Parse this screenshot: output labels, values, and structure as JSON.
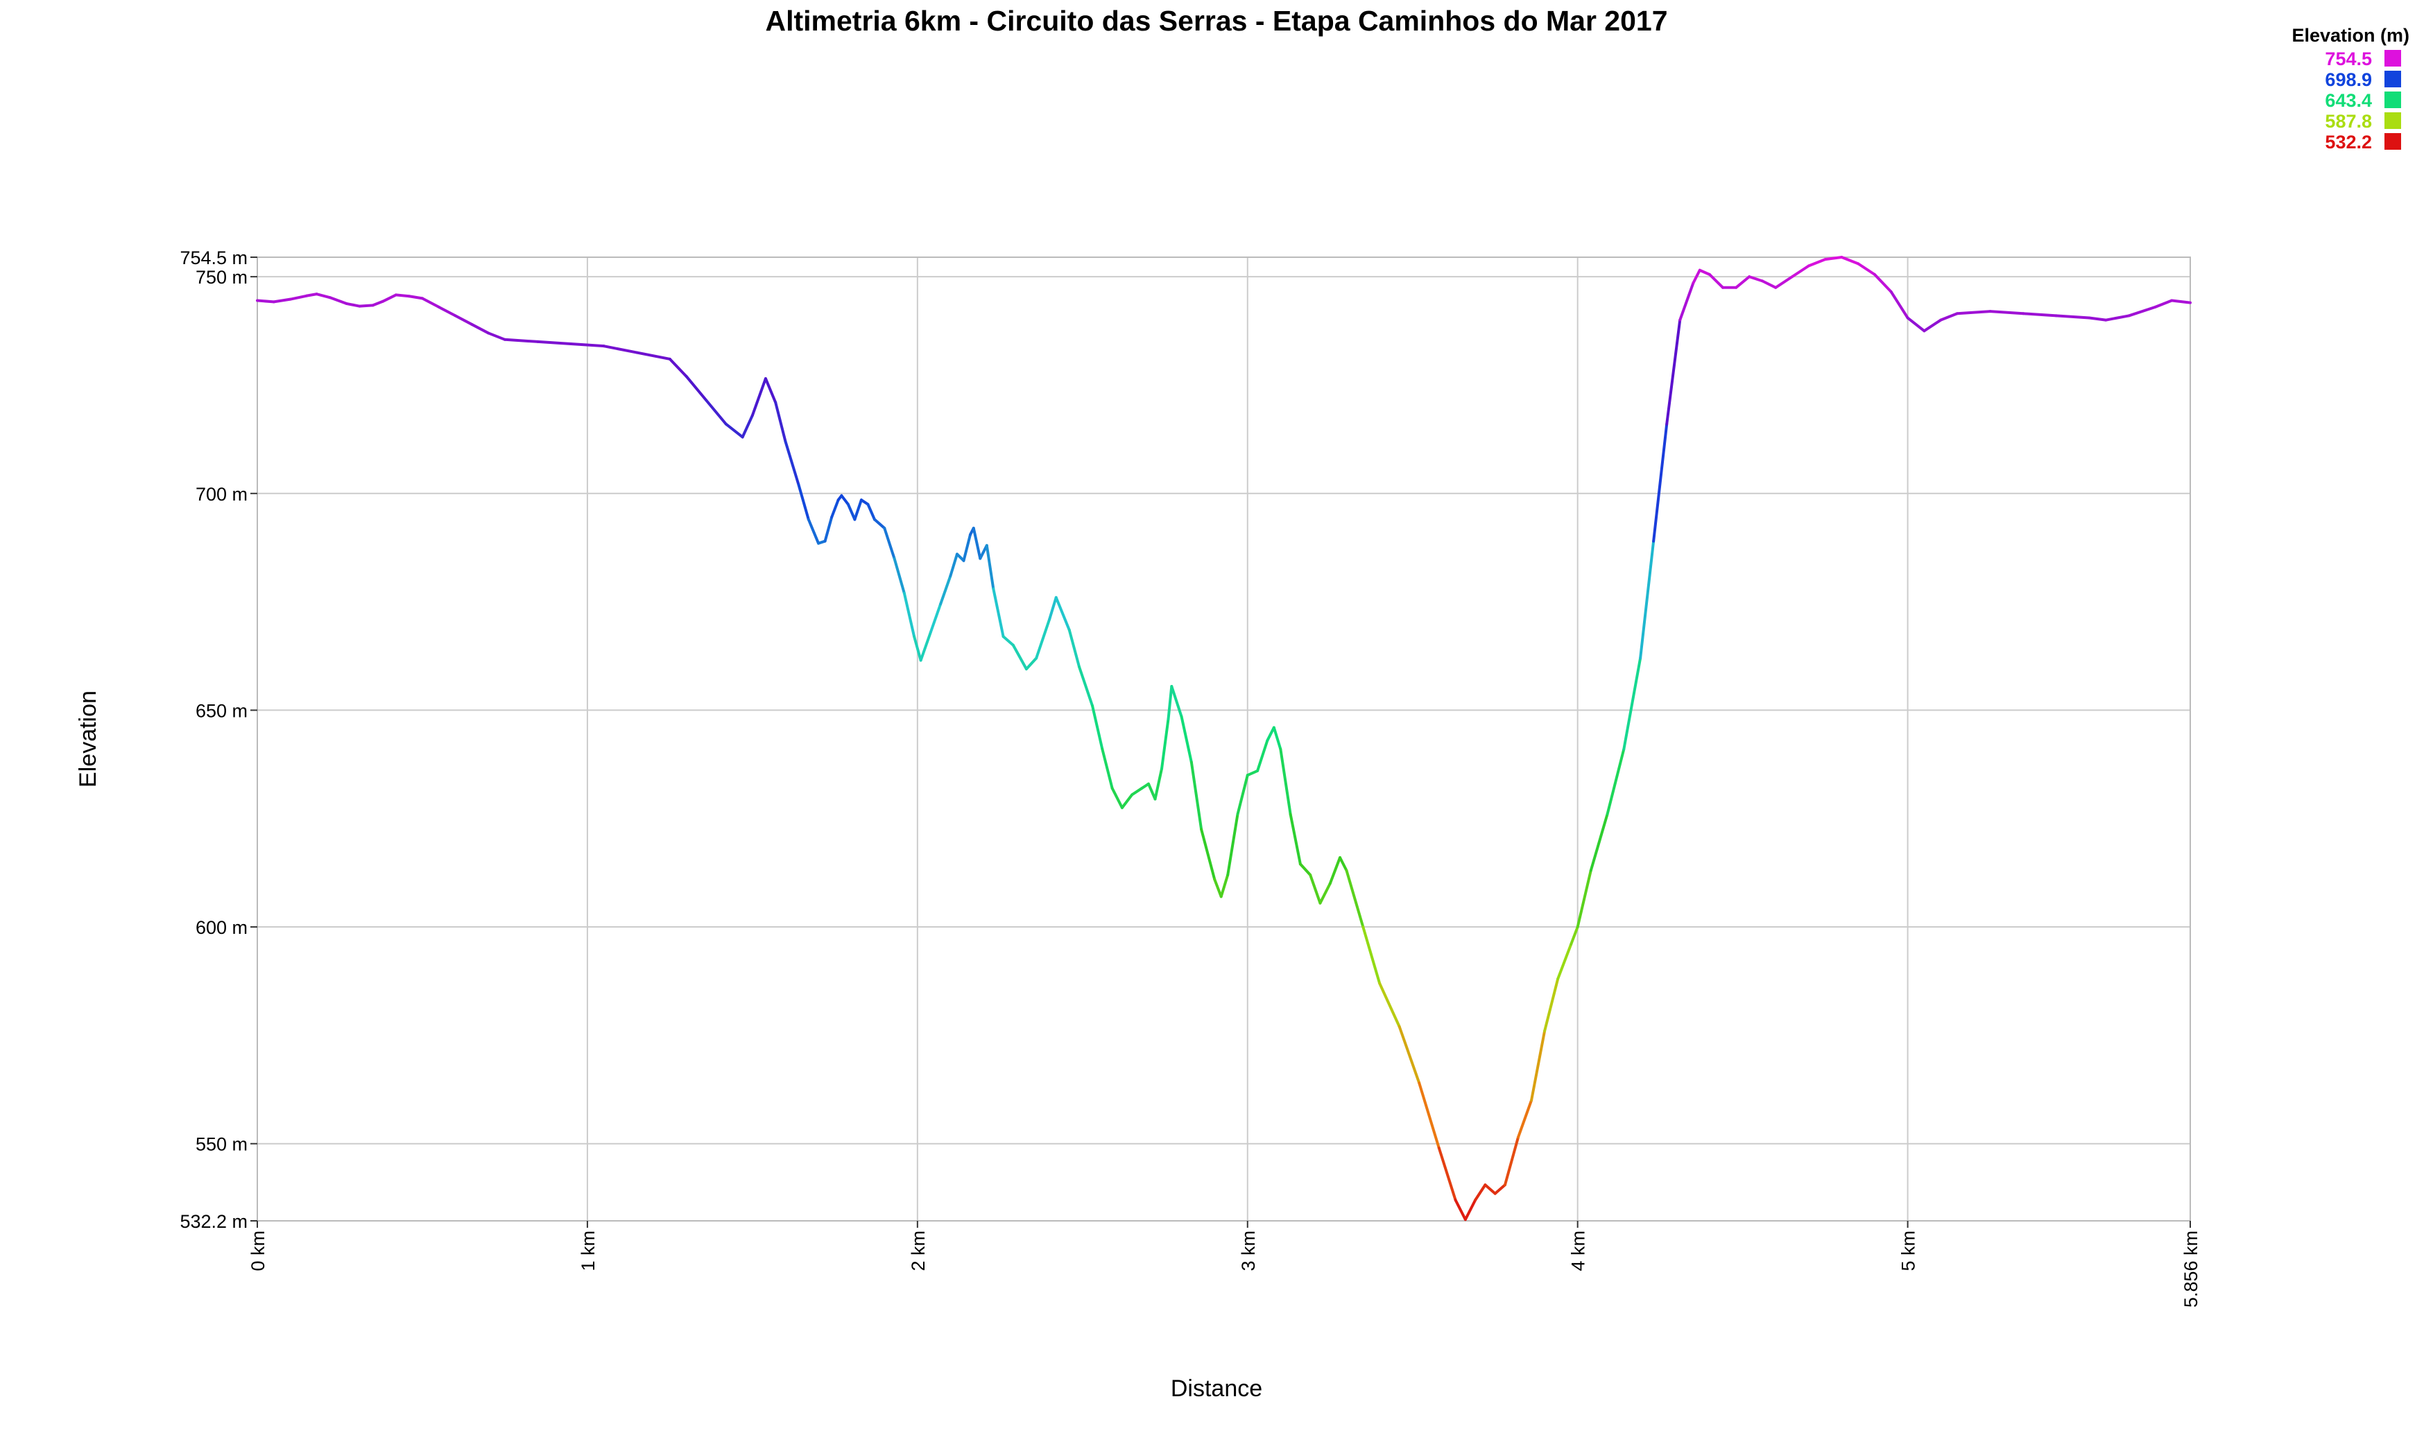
{
  "chart_data": {
    "type": "line",
    "title": "Altimetria 6km - Circuito das Serras - Etapa Caminhos do Mar 2017",
    "xlabel": "Distance",
    "ylabel": "Elevation",
    "x_unit": "km",
    "y_unit": "m",
    "xlim": [
      0,
      5.856
    ],
    "ylim": [
      532.2,
      754.5
    ],
    "x_ticks": [
      {
        "value": 0,
        "label": "0 km"
      },
      {
        "value": 1,
        "label": "1 km"
      },
      {
        "value": 2,
        "label": "2 km"
      },
      {
        "value": 3,
        "label": "3 km"
      },
      {
        "value": 4,
        "label": "4 km"
      },
      {
        "value": 5,
        "label": "5 km"
      },
      {
        "value": 5.856,
        "label": "5.856 km"
      }
    ],
    "y_ticks": [
      {
        "value": 532.2,
        "label": "532.2 m"
      },
      {
        "value": 550,
        "label": "550 m"
      },
      {
        "value": 600,
        "label": "600 m"
      },
      {
        "value": 650,
        "label": "650 m"
      },
      {
        "value": 700,
        "label": "700 m"
      },
      {
        "value": 750,
        "label": "750 m"
      },
      {
        "value": 754.5,
        "label": "754.5 m"
      }
    ],
    "grid": true,
    "legend": {
      "title": "Elevation (m)",
      "placement": "top-right",
      "entries": [
        {
          "label": "754.5",
          "color": "#dd11dd"
        },
        {
          "label": "698.9",
          "color": "#1144dd"
        },
        {
          "label": "643.4",
          "color": "#11dd77"
        },
        {
          "label": "587.8",
          "color": "#aadd11"
        },
        {
          "label": "532.2",
          "color": "#dd1111"
        }
      ]
    },
    "color_scale": [
      {
        "elevation": 532.2,
        "color": "#dd1111"
      },
      {
        "elevation": 560.0,
        "color": "#ee8811"
      },
      {
        "elevation": 587.8,
        "color": "#aadd11"
      },
      {
        "elevation": 615.6,
        "color": "#33cc22"
      },
      {
        "elevation": 643.4,
        "color": "#11dd77"
      },
      {
        "elevation": 671.2,
        "color": "#22cccc"
      },
      {
        "elevation": 698.9,
        "color": "#1144dd"
      },
      {
        "elevation": 726.7,
        "color": "#5511cc"
      },
      {
        "elevation": 754.5,
        "color": "#dd11dd"
      }
    ],
    "series": [
      {
        "points": [
          [
            0.0,
            744.5
          ],
          [
            0.05,
            744.2
          ],
          [
            0.1,
            744.8
          ],
          [
            0.15,
            745.6
          ],
          [
            0.18,
            746.0
          ],
          [
            0.22,
            745.2
          ],
          [
            0.27,
            743.8
          ],
          [
            0.31,
            743.2
          ],
          [
            0.35,
            743.4
          ],
          [
            0.38,
            744.3
          ],
          [
            0.42,
            745.8
          ],
          [
            0.46,
            745.5
          ],
          [
            0.5,
            745.0
          ],
          [
            0.55,
            743.0
          ],
          [
            0.6,
            741.0
          ],
          [
            0.65,
            739.0
          ],
          [
            0.7,
            737.0
          ],
          [
            0.75,
            735.5
          ],
          [
            0.85,
            735.0
          ],
          [
            0.95,
            734.5
          ],
          [
            1.05,
            734.0
          ],
          [
            1.15,
            732.5
          ],
          [
            1.25,
            731.0
          ],
          [
            1.3,
            727.0
          ],
          [
            1.36,
            721.5
          ],
          [
            1.42,
            716.0
          ],
          [
            1.47,
            713.0
          ],
          [
            1.5,
            718.0
          ],
          [
            1.54,
            726.5
          ],
          [
            1.57,
            721.0
          ],
          [
            1.6,
            712.0
          ],
          [
            1.64,
            702.0
          ],
          [
            1.67,
            694.0
          ],
          [
            1.7,
            688.5
          ],
          [
            1.72,
            689.0
          ],
          [
            1.74,
            694.5
          ],
          [
            1.76,
            698.5
          ],
          [
            1.77,
            699.5
          ],
          [
            1.79,
            697.5
          ],
          [
            1.81,
            694.0
          ],
          [
            1.83,
            698.5
          ],
          [
            1.85,
            697.5
          ],
          [
            1.87,
            694.0
          ],
          [
            1.9,
            692.0
          ],
          [
            1.93,
            685.0
          ],
          [
            1.96,
            677.0
          ],
          [
            1.99,
            667.0
          ],
          [
            2.01,
            661.5
          ],
          [
            2.04,
            668.0
          ],
          [
            2.07,
            674.5
          ],
          [
            2.1,
            681.0
          ],
          [
            2.12,
            686.0
          ],
          [
            2.14,
            684.5
          ],
          [
            2.16,
            690.5
          ],
          [
            2.17,
            692.0
          ],
          [
            2.19,
            685.0
          ],
          [
            2.21,
            688.0
          ],
          [
            2.23,
            678.0
          ],
          [
            2.26,
            667.0
          ],
          [
            2.29,
            665.0
          ],
          [
            2.33,
            659.5
          ],
          [
            2.36,
            662.0
          ],
          [
            2.4,
            671.0
          ],
          [
            2.42,
            676.0
          ],
          [
            2.46,
            668.5
          ],
          [
            2.49,
            660.0
          ],
          [
            2.53,
            651.0
          ],
          [
            2.56,
            641.0
          ],
          [
            2.59,
            632.0
          ],
          [
            2.62,
            627.5
          ],
          [
            2.65,
            630.5
          ],
          [
            2.68,
            632.0
          ],
          [
            2.7,
            633.0
          ],
          [
            2.72,
            629.5
          ],
          [
            2.74,
            636.5
          ],
          [
            2.76,
            648.0
          ],
          [
            2.77,
            655.5
          ],
          [
            2.8,
            648.5
          ],
          [
            2.83,
            638.0
          ],
          [
            2.86,
            622.5
          ],
          [
            2.9,
            611.0
          ],
          [
            2.92,
            607.0
          ],
          [
            2.94,
            612.0
          ],
          [
            2.97,
            626.0
          ],
          [
            3.0,
            635.0
          ],
          [
            3.03,
            636.0
          ],
          [
            3.06,
            643.0
          ],
          [
            3.08,
            646.0
          ],
          [
            3.1,
            641.0
          ],
          [
            3.13,
            626.0
          ],
          [
            3.16,
            614.5
          ],
          [
            3.19,
            612.0
          ],
          [
            3.22,
            605.5
          ],
          [
            3.25,
            610.0
          ],
          [
            3.28,
            616.0
          ],
          [
            3.3,
            613.0
          ],
          [
            3.35,
            600.0
          ],
          [
            3.4,
            587.0
          ],
          [
            3.46,
            577.0
          ],
          [
            3.52,
            564.0
          ],
          [
            3.58,
            549.0
          ],
          [
            3.63,
            537.0
          ],
          [
            3.66,
            532.5
          ],
          [
            3.69,
            537.0
          ],
          [
            3.72,
            540.5
          ],
          [
            3.75,
            538.5
          ],
          [
            3.78,
            540.5
          ],
          [
            3.82,
            551.5
          ],
          [
            3.86,
            560.0
          ],
          [
            3.9,
            576.0
          ],
          [
            3.94,
            588.0
          ],
          [
            3.98,
            596.0
          ],
          [
            4.0,
            600.0
          ],
          [
            4.04,
            613.0
          ],
          [
            4.09,
            626.0
          ],
          [
            4.14,
            641.0
          ],
          [
            4.19,
            662.0
          ],
          [
            4.23,
            689.0
          ],
          [
            4.27,
            716.0
          ],
          [
            4.31,
            740.0
          ],
          [
            4.35,
            748.5
          ],
          [
            4.37,
            751.5
          ],
          [
            4.4,
            750.5
          ],
          [
            4.44,
            747.5
          ],
          [
            4.48,
            747.5
          ],
          [
            4.52,
            750.0
          ],
          [
            4.56,
            749.0
          ],
          [
            4.6,
            747.5
          ],
          [
            4.65,
            750.0
          ],
          [
            4.7,
            752.5
          ],
          [
            4.75,
            754.0
          ],
          [
            4.8,
            754.5
          ],
          [
            4.85,
            753.0
          ],
          [
            4.9,
            750.5
          ],
          [
            4.95,
            746.5
          ],
          [
            5.0,
            740.5
          ],
          [
            5.05,
            737.5
          ],
          [
            5.1,
            740.0
          ],
          [
            5.15,
            741.5
          ],
          [
            5.25,
            742.0
          ],
          [
            5.35,
            741.5
          ],
          [
            5.45,
            741.0
          ],
          [
            5.55,
            740.5
          ],
          [
            5.6,
            740.0
          ],
          [
            5.67,
            741.0
          ],
          [
            5.75,
            743.0
          ],
          [
            5.8,
            744.5
          ],
          [
            5.856,
            744.0
          ]
        ]
      }
    ]
  }
}
